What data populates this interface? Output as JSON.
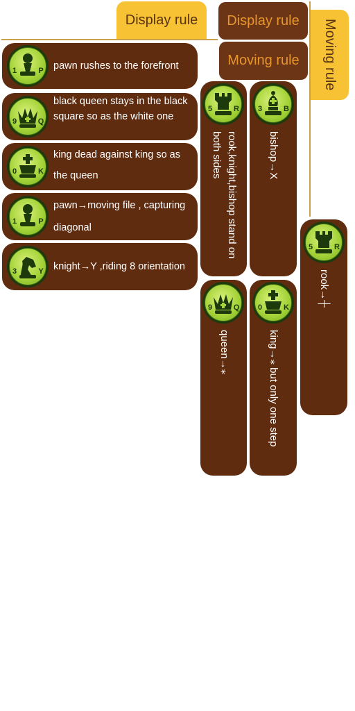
{
  "tabs": {
    "display_active": "Display rule",
    "display_brown": "Display rule",
    "moving_brown": "Moving rule",
    "moving_vertical": "Moving rule"
  },
  "display_rules": [
    {
      "icon": "pawn-icon",
      "badge_left": "1",
      "badge_right": "P",
      "text": "pawn rushes to the forefront"
    },
    {
      "icon": "queen-icon",
      "badge_left": "9",
      "badge_right": "Q",
      "text": "black queen stays in the black square so as the white one"
    },
    {
      "icon": "king-icon",
      "badge_left": "0",
      "badge_right": "K",
      "text": "king dead against king so as the queen"
    },
    {
      "icon": "pawn-icon",
      "badge_left": "1",
      "badge_right": "P",
      "text": "pawn→moving file , capturing diagonal"
    },
    {
      "icon": "knight-icon",
      "badge_left": "3",
      "badge_right": "Y",
      "text": "knight→Y ,riding 8 orientation"
    }
  ],
  "moving_rules": {
    "rook_setup": {
      "icon": "rook-icon",
      "badge_left": "5",
      "badge_right": "R",
      "text": "rook,knight,bishop stand on both sides"
    },
    "bishop": {
      "icon": "bishop-icon",
      "badge_left": "3",
      "badge_right": "B",
      "text": "bishop→X"
    },
    "rook": {
      "icon": "rook-icon",
      "badge_left": "5",
      "badge_right": "R",
      "text": "rook→┼"
    },
    "queen": {
      "icon": "queen-icon",
      "badge_left": "9",
      "badge_right": "Q",
      "text": "queen→⁎"
    },
    "king": {
      "icon": "king-icon",
      "badge_left": "0",
      "badge_right": "K",
      "text": "king→⁎ but only one step"
    }
  },
  "colors": {
    "card_brown": "#5f2c10",
    "tab_yellow": "#f7c233",
    "tab_brown": "#6b3516",
    "tab_brown_text": "#e8952e",
    "badge_green": "#a6d43a"
  }
}
